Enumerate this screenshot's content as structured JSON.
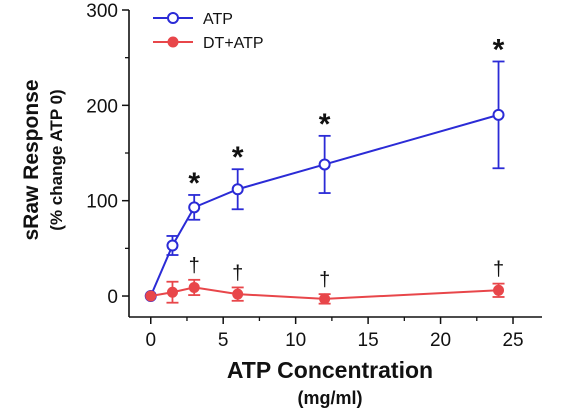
{
  "chart_data": {
    "type": "line",
    "title": "",
    "xlabel": "ATP Concentration",
    "xlabel_unit": "(mg/ml)",
    "ylabel": "sRaw Response",
    "ylabel_sub": "(% change ATP 0)",
    "xlim": [
      -1.5,
      27
    ],
    "ylim": [
      -22,
      300
    ],
    "x_ticks": [
      0,
      5,
      10,
      15,
      20,
      25
    ],
    "y_ticks": [
      0,
      100,
      200,
      300
    ],
    "grid": false,
    "legend_position": "top-left",
    "series": [
      {
        "name": "ATP",
        "color": "#2b2bd6",
        "marker": "open-circle",
        "x": [
          0,
          1.5,
          3,
          6,
          12,
          24
        ],
        "y": [
          0,
          53,
          93,
          112,
          138,
          190
        ],
        "error": [
          0,
          10,
          13,
          21,
          30,
          56
        ]
      },
      {
        "name": "DT+ATP",
        "color": "#e8464a",
        "marker": "filled-circle",
        "x": [
          0,
          1.5,
          3,
          6,
          12,
          24
        ],
        "y": [
          0,
          4,
          9,
          2,
          -3,
          6
        ],
        "error": [
          0,
          11,
          8,
          7,
          5,
          7
        ]
      }
    ],
    "annotations": [
      {
        "text": "*",
        "x": 3,
        "series": "ATP"
      },
      {
        "text": "*",
        "x": 6,
        "series": "ATP"
      },
      {
        "text": "*",
        "x": 12,
        "series": "ATP"
      },
      {
        "text": "*",
        "x": 24,
        "series": "ATP"
      },
      {
        "text": "†",
        "x": 3,
        "series": "DT+ATP"
      },
      {
        "text": "†",
        "x": 6,
        "series": "DT+ATP"
      },
      {
        "text": "†",
        "x": 12,
        "series": "DT+ATP"
      },
      {
        "text": "†",
        "x": 24,
        "series": "DT+ATP"
      }
    ]
  }
}
